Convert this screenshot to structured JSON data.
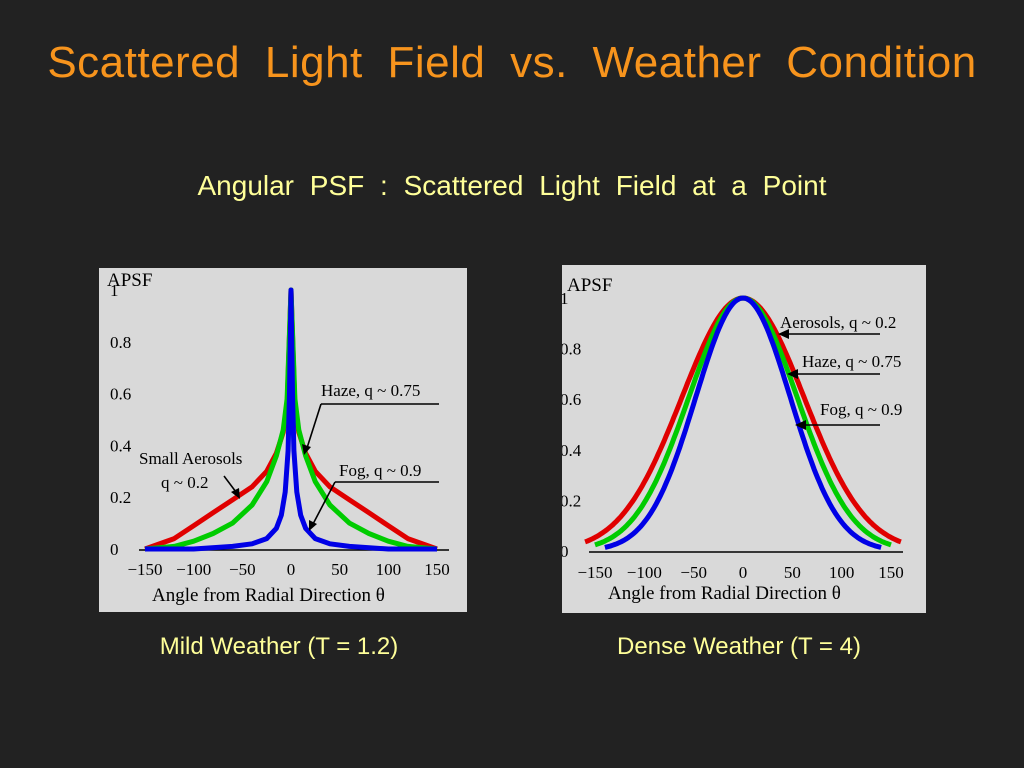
{
  "slide": {
    "title": "Scattered  Light  Field  vs.  Weather  Condition",
    "subtitle": "Angular  PSF :  Scattered  Light  Field  at  a  Point"
  },
  "colors": {
    "title": "#f7941d",
    "subtitle": "#ffff99",
    "panel_bg": "#d9d9d9",
    "aerosols": "#e00000",
    "haze": "#00cc00",
    "fog": "#0000e6"
  },
  "chart_data": [
    {
      "type": "line",
      "caption": "Mild Weather (T = 1.2)",
      "ylabel": "APSF",
      "xlabel": "Angle from Radial Direction θ",
      "xlim": [
        -150,
        150
      ],
      "ylim": [
        0,
        1
      ],
      "x_ticks": [
        "−150",
        "−100",
        "−50",
        "0",
        "50",
        "100",
        "150"
      ],
      "y_ticks": [
        "0",
        "0.2",
        "0.4",
        "0.6",
        "0.8",
        "1"
      ],
      "grid": false,
      "annotations": {
        "aerosols_line1": "Small Aerosols",
        "aerosols_line2": "q ~ 0.2",
        "haze": "Haze, q ~ 0.75",
        "fog": "Fog, q ~ 0.9"
      },
      "series": [
        {
          "key": "aerosols",
          "x": [
            -150,
            -120,
            -100,
            -80,
            -60,
            -40,
            -25,
            -15,
            -8,
            -4,
            0,
            4,
            8,
            15,
            25,
            40,
            60,
            80,
            100,
            120,
            150
          ],
          "values": [
            0,
            0.04,
            0.09,
            0.14,
            0.19,
            0.24,
            0.3,
            0.37,
            0.45,
            0.55,
            1,
            0.55,
            0.45,
            0.37,
            0.3,
            0.24,
            0.19,
            0.14,
            0.09,
            0.04,
            0
          ]
        },
        {
          "key": "haze",
          "x": [
            -150,
            -120,
            -100,
            -80,
            -60,
            -40,
            -25,
            -15,
            -8,
            -4,
            0,
            4,
            8,
            15,
            25,
            40,
            60,
            80,
            100,
            120,
            150
          ],
          "values": [
            0,
            0.01,
            0.03,
            0.06,
            0.1,
            0.17,
            0.26,
            0.36,
            0.46,
            0.58,
            1,
            0.58,
            0.46,
            0.36,
            0.26,
            0.17,
            0.1,
            0.06,
            0.03,
            0.01,
            0
          ]
        },
        {
          "key": "fog",
          "x": [
            -150,
            -100,
            -60,
            -40,
            -25,
            -15,
            -10,
            -6,
            -3,
            -1.5,
            0,
            1.5,
            3,
            6,
            10,
            15,
            25,
            40,
            60,
            100,
            150
          ],
          "values": [
            0,
            0,
            0.01,
            0.02,
            0.04,
            0.08,
            0.13,
            0.22,
            0.38,
            0.6,
            1,
            0.6,
            0.38,
            0.22,
            0.13,
            0.08,
            0.04,
            0.02,
            0.01,
            0,
            0
          ]
        }
      ]
    },
    {
      "type": "line",
      "caption": "Dense Weather (T = 4)",
      "ylabel": "APSF",
      "xlabel": "Angle from Radial Direction θ",
      "xlim": [
        -150,
        150
      ],
      "ylim": [
        0,
        1
      ],
      "x_ticks": [
        "−150",
        "−100",
        "−50",
        "0",
        "50",
        "100",
        "150"
      ],
      "y_ticks": [
        "0",
        "0.2",
        "0.4",
        "0.6",
        "0.8",
        "1"
      ],
      "grid": false,
      "annotations": {
        "aerosols": "Aerosols, q ~ 0.2",
        "haze": "Haze, q ~ 0.75",
        "fog": "Fog, q ~ 0.9"
      },
      "series": [
        {
          "key": "aerosols",
          "gauss_sigma": 62,
          "x_range": [
            -160,
            160
          ]
        },
        {
          "key": "haze",
          "gauss_sigma": 55,
          "x_range": [
            -150,
            150
          ]
        },
        {
          "key": "fog",
          "gauss_sigma": 48,
          "x_range": [
            -140,
            140
          ]
        }
      ]
    }
  ]
}
